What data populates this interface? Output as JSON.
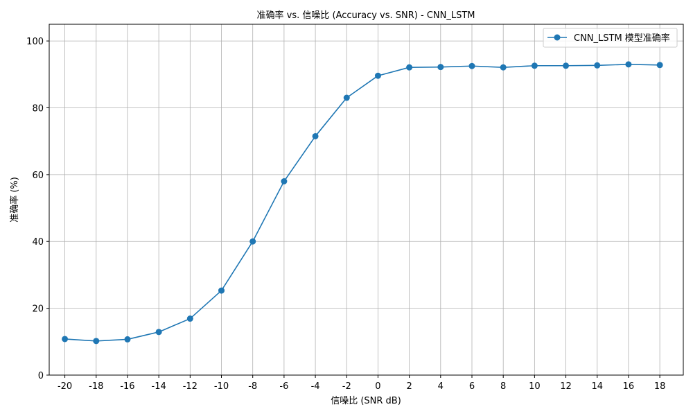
{
  "chart_data": {
    "type": "line",
    "title": "准确率 vs. 信噪比 (Accuracy vs. SNR) - CNN_LSTM",
    "xlabel": "信噪比 (SNR dB)",
    "ylabel": "准确率 (%)",
    "x": [
      -20,
      -18,
      -16,
      -14,
      -12,
      -10,
      -8,
      -6,
      -4,
      -2,
      0,
      2,
      4,
      6,
      8,
      10,
      12,
      14,
      16,
      18
    ],
    "x_tick_labels": [
      "-20",
      "-18",
      "-16",
      "-14",
      "-12",
      "-10",
      "-8",
      "-6",
      "-4",
      "-2",
      "0",
      "2",
      "4",
      "6",
      "8",
      "10",
      "12",
      "14",
      "16",
      "18"
    ],
    "y_ticks": [
      0,
      20,
      40,
      60,
      80,
      100
    ],
    "y_tick_labels": [
      "0",
      "20",
      "40",
      "60",
      "80",
      "100"
    ],
    "xlim": [
      -21,
      19.5
    ],
    "ylim": [
      0,
      105
    ],
    "grid": true,
    "legend_position": "top-right",
    "series": [
      {
        "name": "CNN_LSTM 模型准确率",
        "color": "#1f77b4",
        "marker": "circle",
        "values": [
          10.8,
          10.2,
          10.7,
          12.9,
          16.9,
          25.3,
          40.0,
          58.0,
          71.5,
          83.0,
          89.6,
          92.1,
          92.2,
          92.5,
          92.1,
          92.6,
          92.6,
          92.7,
          93.0,
          92.8
        ]
      }
    ]
  }
}
